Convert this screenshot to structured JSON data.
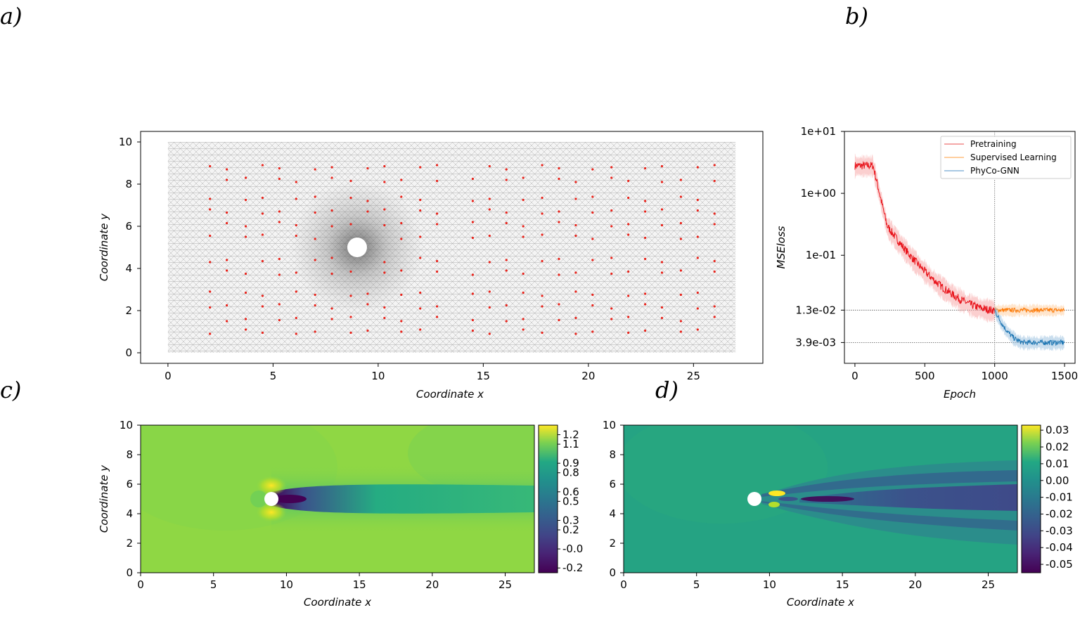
{
  "panels": {
    "a": "a)",
    "b": "b)",
    "c": "c)",
    "d": "d)"
  },
  "colors": {
    "pretraining": "#e8131a",
    "supervised": "#ff7f0e",
    "phyco": "#1f77b4",
    "sensor": "#e8231b",
    "mesh": "#9a9a9a"
  },
  "chart_data": [
    {
      "id": "a",
      "type": "scatter",
      "xlabel": "Coordinate x",
      "ylabel": "Coordinate y",
      "xlim": [
        -1.3,
        28.3
      ],
      "ylim": [
        -0.5,
        10.5
      ],
      "xticks": [
        "0",
        "5",
        "10",
        "15",
        "20",
        "25"
      ],
      "yticks": [
        "0",
        "2",
        "4",
        "6",
        "8",
        "10"
      ],
      "domain": {
        "x": [
          0,
          27
        ],
        "y": [
          0,
          10
        ]
      },
      "cylinder": {
        "cx": 9,
        "cy": 5,
        "r": 0.5
      },
      "sensor_columns": [
        2,
        2.8,
        3.7,
        4.5,
        5.3,
        6.1,
        7,
        7.8,
        8.7,
        9.5,
        10.3,
        11.1,
        12,
        12.8,
        14.5,
        15.3,
        16.1,
        16.9,
        17.8,
        18.6,
        19.4,
        20.2,
        21.1,
        21.9,
        22.7,
        23.5,
        24.4,
        25.2,
        26
      ],
      "sensor_rows": [
        1,
        1.6,
        2.2,
        2.8,
        3.8,
        4.4,
        5.5,
        6.1,
        6.7,
        7.3,
        8.2,
        8.8
      ]
    },
    {
      "id": "b",
      "type": "line",
      "xlabel": "Epoch",
      "ylabel": "MSEloss",
      "yscale": "log",
      "xlim": [
        -75,
        1575
      ],
      "xticks": [
        0,
        500,
        1000,
        1500
      ],
      "yticks": [
        "1e+01",
        "1e+00",
        "1e-01",
        "1.3e-02",
        "3.9e-03"
      ],
      "ytick_values": [
        10,
        1,
        0.1,
        0.013,
        0.0039
      ],
      "ylim": [
        0.0018,
        10
      ],
      "vline_x": 1000,
      "hlines": [
        0.013,
        0.0039
      ],
      "legend_position": "top-right",
      "series": [
        {
          "name": "Pretraining",
          "x_range": [
            0,
            1000
          ],
          "start": 2.8,
          "plateau_end": 130,
          "drop_to": 0.3,
          "drop_end": 230,
          "end": 0.013
        },
        {
          "name": "Supervised Learning",
          "x_range": [
            1000,
            1500
          ],
          "start": 0.013,
          "end": 0.013
        },
        {
          "name": "PhyCo-GNN",
          "x_range": [
            1000,
            1500
          ],
          "start": 0.013,
          "end": 0.0039
        }
      ]
    },
    {
      "id": "c",
      "type": "heatmap",
      "xlabel": "Coordinate x",
      "ylabel": "Coordinate y",
      "xlim": [
        0,
        27
      ],
      "ylim": [
        0,
        10
      ],
      "xticks": [
        "0",
        "5",
        "10",
        "15",
        "20",
        "25"
      ],
      "yticks": [
        "0",
        "2",
        "4",
        "6",
        "8",
        "10"
      ],
      "colorbar_ticks": [
        "1.2",
        "1.1",
        "0.9",
        "0.8",
        "0.6",
        "0.5",
        "0.3",
        "0.2",
        "-0.0",
        "-0.2"
      ],
      "colorbar_range": [
        -0.25,
        1.3
      ],
      "cylinder": {
        "cx": 9,
        "cy": 5,
        "r": 0.5
      }
    },
    {
      "id": "d",
      "type": "heatmap",
      "xlabel": "Coordinate x",
      "ylabel": "",
      "xlim": [
        0,
        27
      ],
      "ylim": [
        0,
        10
      ],
      "xticks": [
        "0",
        "5",
        "10",
        "15",
        "20",
        "25"
      ],
      "yticks": [
        "0",
        "2",
        "4",
        "6",
        "8",
        "10"
      ],
      "colorbar_ticks": [
        "0.03",
        "0.02",
        "0.01",
        "0.00",
        "-0.01",
        "-0.02",
        "-0.03",
        "-0.04",
        "-0.05"
      ],
      "colorbar_range": [
        -0.055,
        0.033
      ],
      "cylinder": {
        "cx": 9,
        "cy": 5,
        "r": 0.5
      }
    }
  ]
}
